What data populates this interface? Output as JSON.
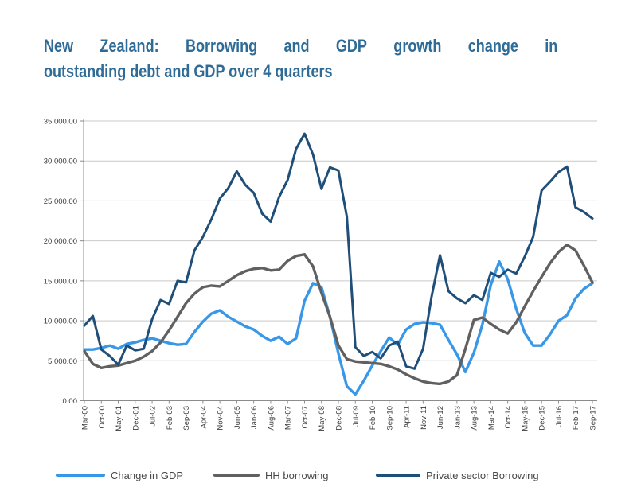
{
  "title": {
    "line1": "New Zealand: Borrowing and GDP growth change in",
    "line2": "outstanding debt and GDP over 4 quarters",
    "color": "#2e6b96"
  },
  "chart_data": {
    "type": "line",
    "title": "New Zealand: Borrowing and GDP growth change in outstanding debt and GDP over 4 quarters",
    "xlabel": "",
    "ylabel": "",
    "ylim": [
      0,
      35000
    ],
    "grid": true,
    "legend_position": "bottom",
    "y_axis": {
      "min": 0,
      "max": 35000,
      "tick_step": 5000,
      "tick_labels": [
        "35,000.00",
        "30,000.00",
        "25,000.00",
        "20,000.00",
        "15,000.00",
        "10,000.00",
        "5,000.00",
        "0.00"
      ]
    },
    "x_labels": [
      "Mar-00",
      "Oct-00",
      "May-01",
      "Dec-01",
      "Jul-02",
      "Feb-03",
      "Sep-03",
      "Apr-04",
      "Nov-04",
      "Jun-05",
      "Jan-06",
      "Aug-06",
      "Mar-07",
      "Oct-07",
      "May-08",
      "Dec-08",
      "Jul-09",
      "Feb-10",
      "Sep-10",
      "Apr-11",
      "Nov-11",
      "Jun-12",
      "Jan-13",
      "Aug-13",
      "Mar-14",
      "Oct-14",
      "May-15",
      "Dec-15",
      "Jul-16",
      "Feb-17",
      "Sep-17"
    ],
    "series": [
      {
        "name": "Change in GDP",
        "color": "#3897e6",
        "values": [
          6400,
          6400,
          6600,
          6900,
          6500,
          7100,
          7300,
          7600,
          7800,
          7500,
          7200,
          7000,
          7100,
          8600,
          9900,
          10900,
          11300,
          10500,
          9900,
          9300,
          8900,
          8100,
          7500,
          8000,
          7100,
          7800,
          12500,
          14700,
          14200,
          10500,
          5900,
          1800,
          800,
          2500,
          4400,
          6200,
          7900,
          7000,
          8900,
          9600,
          9800,
          9700,
          9500,
          7600,
          5800,
          3600,
          6000,
          9500,
          14500,
          17400,
          15200,
          11500,
          8500,
          6900,
          6900,
          8300,
          10000,
          10700,
          12800,
          14000,
          14700
        ]
      },
      {
        "name": "HH borrowing",
        "color": "#606060",
        "values": [
          6200,
          4600,
          4100,
          4300,
          4400,
          4700,
          5000,
          5500,
          6200,
          7300,
          8800,
          10500,
          12200,
          13400,
          14200,
          14400,
          14300,
          15000,
          15700,
          16200,
          16500,
          16600,
          16300,
          16400,
          17500,
          18100,
          18300,
          16800,
          13500,
          10500,
          6900,
          5200,
          4900,
          4800,
          4700,
          4600,
          4300,
          3900,
          3300,
          2800,
          2400,
          2200,
          2100,
          2400,
          3200,
          6500,
          10100,
          10400,
          9600,
          8900,
          8400,
          9800,
          11800,
          13700,
          15500,
          17200,
          18600,
          19500,
          18800,
          16900,
          14800
        ]
      },
      {
        "name": "Private sector Borrowing",
        "color": "#1f4e79",
        "values": [
          9400,
          10600,
          6400,
          5600,
          4500,
          6900,
          6300,
          6500,
          10200,
          12600,
          12100,
          15000,
          14800,
          18800,
          20500,
          22700,
          25300,
          26600,
          28700,
          27000,
          26000,
          23400,
          22400,
          25500,
          27600,
          31500,
          33400,
          30800,
          26500,
          29200,
          28800,
          23000,
          6700,
          5600,
          6100,
          5300,
          6900,
          7400,
          4300,
          4000,
          6500,
          13000,
          18200,
          13700,
          12800,
          12200,
          13200,
          12600,
          16000,
          15500,
          16400,
          15900,
          18000,
          20500,
          26300,
          27400,
          28600,
          29300,
          24200,
          23600,
          22800
        ]
      }
    ]
  },
  "legend": {
    "items": [
      {
        "label": "Change in GDP",
        "color": "#3897e6"
      },
      {
        "label": "HH borrowing",
        "color": "#606060"
      },
      {
        "label": "Private sector Borrowing",
        "color": "#1f4e79"
      }
    ]
  }
}
